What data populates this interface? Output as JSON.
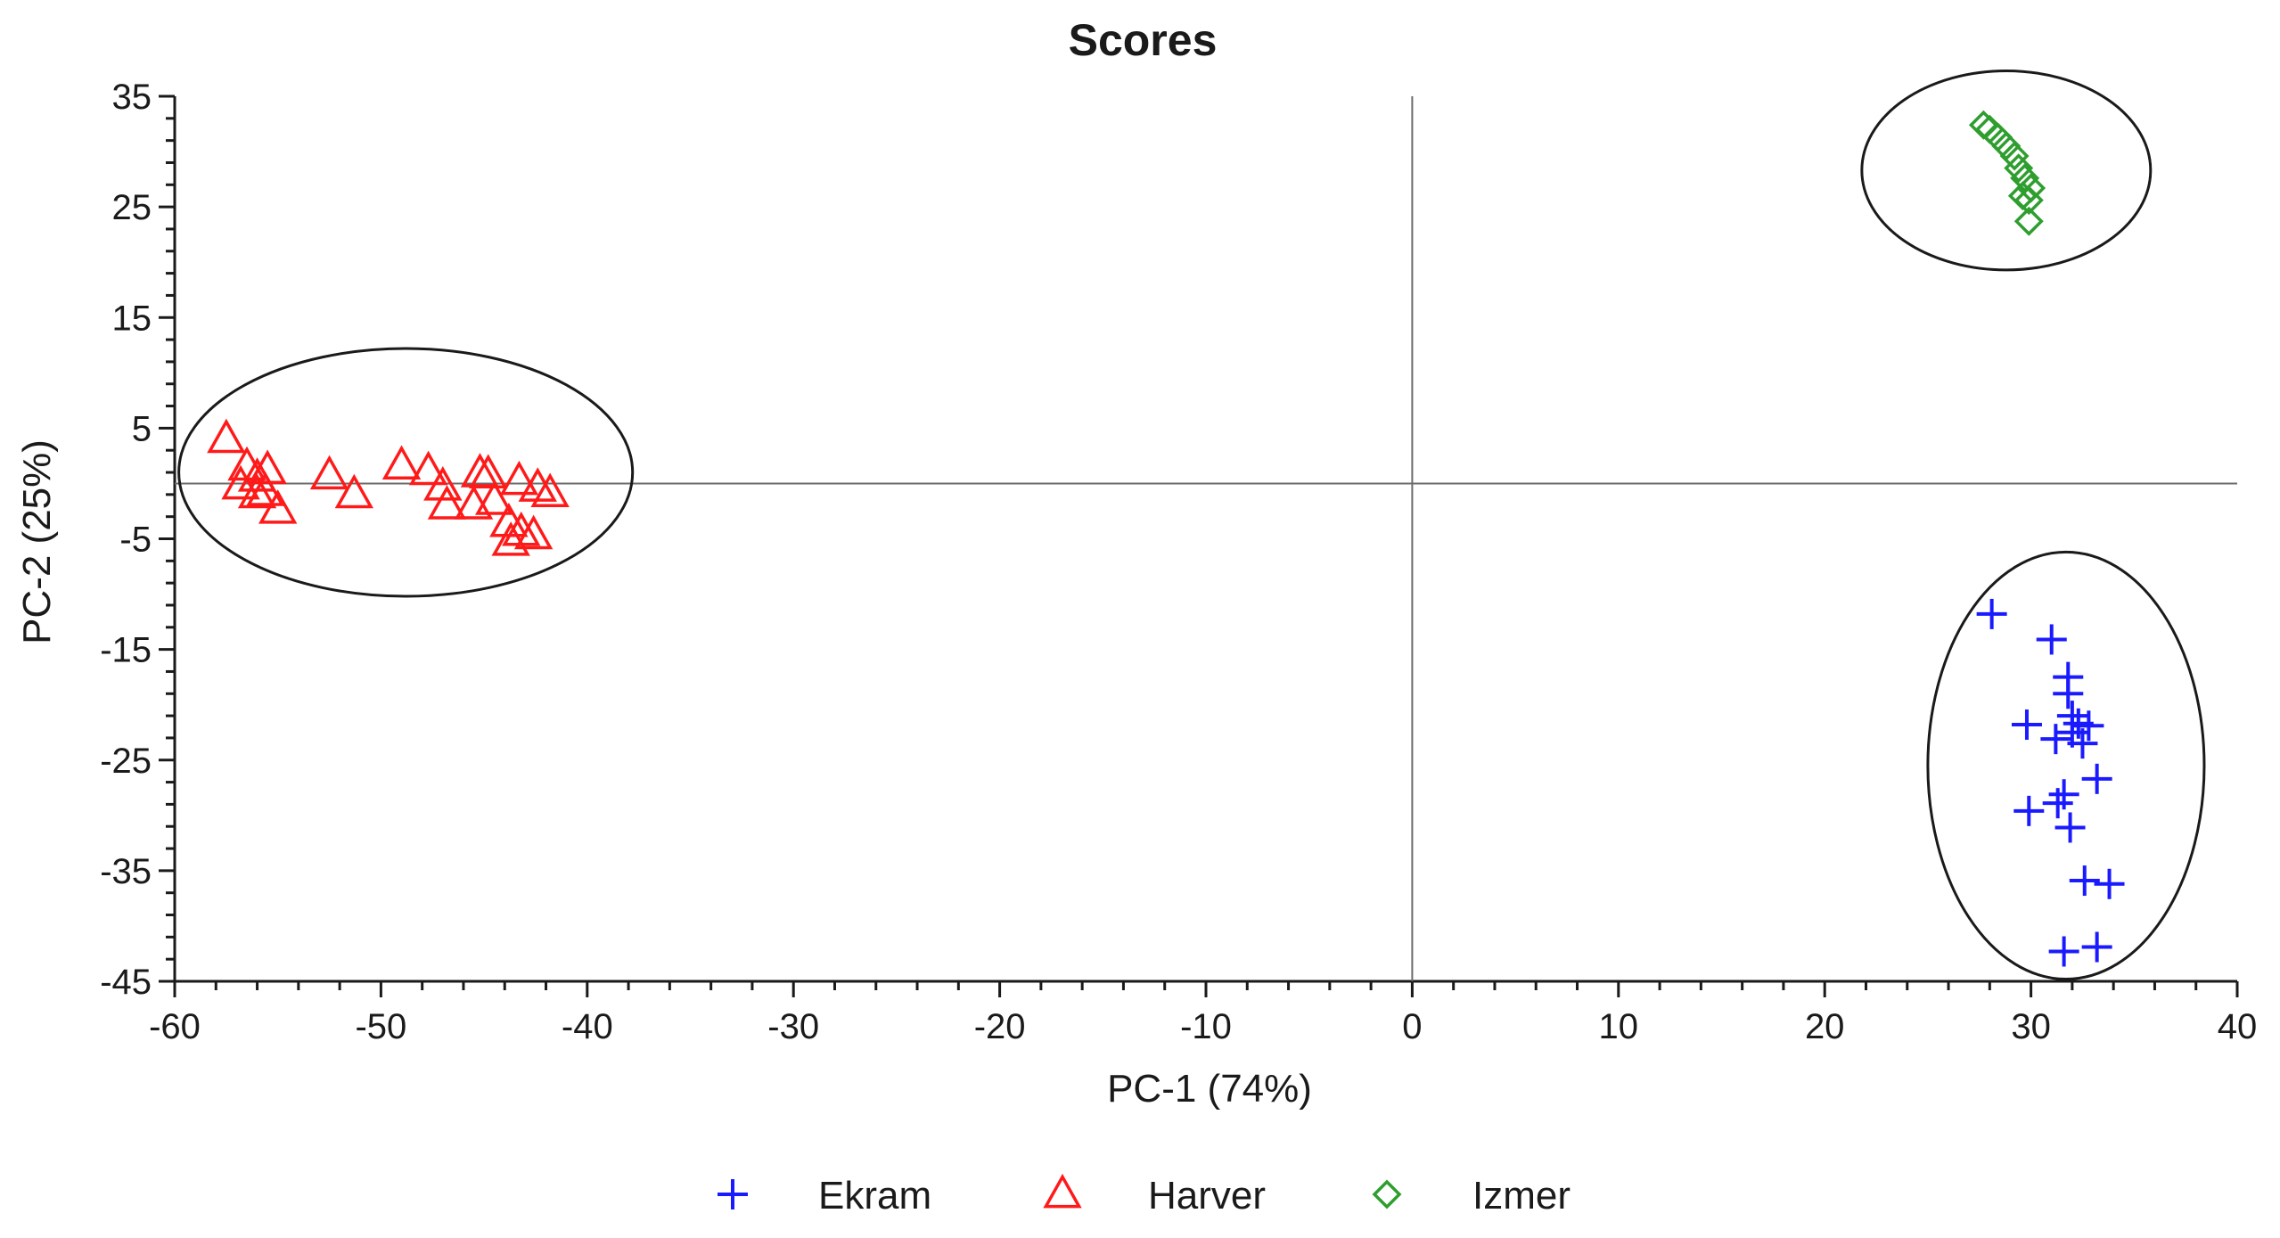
{
  "chart_data": {
    "type": "scatter",
    "title": "Scores",
    "xlabel": "PC-1 (74%)",
    "ylabel": "PC-2 (25%)",
    "xlim": [
      -60,
      40
    ],
    "ylim": [
      -45,
      35
    ],
    "xticks": [
      -60,
      -50,
      -40,
      -30,
      -20,
      -10,
      0,
      10,
      20,
      30,
      40
    ],
    "yticks": [
      35,
      25,
      15,
      5,
      -5,
      -15,
      -25,
      -35,
      -45
    ],
    "grid": false,
    "zero_lines": true,
    "legend_position": "bottom",
    "series": [
      {
        "name": "Ekram",
        "marker": "plus",
        "color": "#1a1aff",
        "points": [
          [
            28.1,
            -11.8
          ],
          [
            31.0,
            -14.1
          ],
          [
            31.8,
            -17.5
          ],
          [
            31.8,
            -19.0
          ],
          [
            29.8,
            -21.8
          ],
          [
            32.0,
            -21.0
          ],
          [
            32.3,
            -21.7
          ],
          [
            32.8,
            -21.9
          ],
          [
            31.2,
            -23.1
          ],
          [
            32.5,
            -23.5
          ],
          [
            32.0,
            -22.5
          ],
          [
            33.2,
            -26.7
          ],
          [
            31.6,
            -28.1
          ],
          [
            31.3,
            -28.9
          ],
          [
            29.9,
            -29.6
          ],
          [
            31.9,
            -31.1
          ],
          [
            32.6,
            -35.9
          ],
          [
            33.8,
            -36.2
          ],
          [
            31.6,
            -42.3
          ],
          [
            33.2,
            -41.9
          ]
        ]
      },
      {
        "name": "Harver",
        "marker": "triangle",
        "color": "#ff1a1a",
        "points": [
          [
            -57.5,
            4.0
          ],
          [
            -56.5,
            1.5
          ],
          [
            -56.0,
            0.5
          ],
          [
            -55.5,
            1.2
          ],
          [
            -56.8,
            -0.2
          ],
          [
            -56.0,
            -1.0
          ],
          [
            -55.6,
            -0.8
          ],
          [
            -55.0,
            -2.4
          ],
          [
            -52.5,
            0.7
          ],
          [
            -51.3,
            -1.0
          ],
          [
            -49.0,
            1.6
          ],
          [
            -47.7,
            1.1
          ],
          [
            -47.0,
            -0.3
          ],
          [
            -46.8,
            -2.0
          ],
          [
            -45.2,
            0.9
          ],
          [
            -44.8,
            0.8
          ],
          [
            -45.5,
            -2.0
          ],
          [
            -44.5,
            -1.6
          ],
          [
            -43.3,
            0.2
          ],
          [
            -42.4,
            -0.4
          ],
          [
            -41.8,
            -0.9
          ],
          [
            -43.8,
            -3.6
          ],
          [
            -43.7,
            -5.3
          ],
          [
            -43.2,
            -4.4
          ],
          [
            -42.6,
            -4.7
          ]
        ]
      },
      {
        "name": "Izmer",
        "marker": "diamond",
        "color": "#2e9e2e",
        "points": [
          [
            27.7,
            32.4
          ],
          [
            28.0,
            32.0
          ],
          [
            28.4,
            31.3
          ],
          [
            28.8,
            30.5
          ],
          [
            29.2,
            29.6
          ],
          [
            29.4,
            28.5
          ],
          [
            29.7,
            27.6
          ],
          [
            30.0,
            26.7
          ],
          [
            29.6,
            26.0
          ],
          [
            29.9,
            25.6
          ],
          [
            29.9,
            23.7
          ]
        ]
      }
    ],
    "cluster_ellipses": [
      {
        "series": "Harver",
        "cx": -48.8,
        "cy": 1.0,
        "rx": 11.0,
        "ry": 11.2
      },
      {
        "series": "Izmer",
        "cx": 28.8,
        "cy": 28.3,
        "rx": 7.0,
        "ry": 9.0
      },
      {
        "series": "Ekram",
        "cx": 31.7,
        "cy": -25.5,
        "rx": 6.7,
        "ry": 19.3
      }
    ]
  }
}
